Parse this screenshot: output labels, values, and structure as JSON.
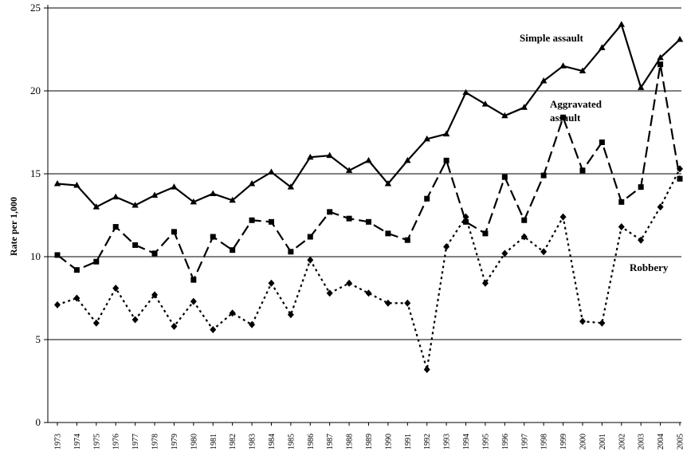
{
  "chart_data": {
    "type": "line",
    "title": "",
    "xlabel": "",
    "ylabel": "Rate per 1,000",
    "ylim": [
      0,
      25
    ],
    "yticks": [
      0,
      5,
      10,
      15,
      20,
      25
    ],
    "grid": "horizontal",
    "legend": "none",
    "x": [
      "1973",
      "1974",
      "1975",
      "1976",
      "1977",
      "1978",
      "1979",
      "1980",
      "1981",
      "1982",
      "1983",
      "1984",
      "1985",
      "1986",
      "1987",
      "1988",
      "1989",
      "1990",
      "1991",
      "1992",
      "1993",
      "1994",
      "1995",
      "1996",
      "1997",
      "1998",
      "1999",
      "2000",
      "2001",
      "2002",
      "2003",
      "2004",
      "2005"
    ],
    "series": [
      {
        "name": "Simple assault",
        "line_style": "solid",
        "marker": "triangle",
        "values": [
          14.4,
          14.3,
          13.0,
          13.6,
          13.1,
          13.7,
          14.2,
          13.3,
          13.8,
          13.4,
          14.4,
          15.1,
          14.2,
          16.0,
          16.1,
          15.2,
          15.8,
          14.4,
          15.8,
          17.1,
          17.4,
          19.9,
          19.2,
          18.5,
          19.0,
          20.6,
          21.5,
          21.2,
          22.6,
          24.0,
          20.2,
          22.0,
          23.1
        ]
      },
      {
        "name": "Aggravated assault",
        "line_style": "dashed",
        "marker": "square",
        "values": [
          10.1,
          9.2,
          9.7,
          11.8,
          10.7,
          10.2,
          11.5,
          8.6,
          11.2,
          10.4,
          12.2,
          12.1,
          10.3,
          11.2,
          12.7,
          12.3,
          12.1,
          11.4,
          11.0,
          13.5,
          15.8,
          12.1,
          11.4,
          14.8,
          12.2,
          14.9,
          18.4,
          15.2,
          16.9,
          13.3,
          14.2,
          21.6,
          14.7
        ]
      },
      {
        "name": "Robbery",
        "line_style": "dotted",
        "marker": "diamond",
        "values": [
          7.1,
          7.5,
          6.0,
          8.1,
          6.2,
          7.7,
          5.8,
          7.3,
          5.6,
          6.6,
          5.9,
          8.4,
          6.5,
          9.8,
          7.8,
          8.4,
          7.8,
          7.2,
          7.2,
          3.2,
          10.6,
          12.4,
          8.4,
          10.2,
          11.2,
          10.3,
          12.4,
          6.1,
          6.0,
          11.8,
          11.0,
          13.0,
          15.3
        ]
      }
    ],
    "annotations": [
      {
        "series": "Simple assault",
        "lines": [
          "Simple assault"
        ]
      },
      {
        "series": "Aggravated assault",
        "lines": [
          "Aggravated",
          "assault"
        ]
      },
      {
        "series": "Robbery",
        "lines": [
          "Robbery"
        ]
      }
    ]
  }
}
